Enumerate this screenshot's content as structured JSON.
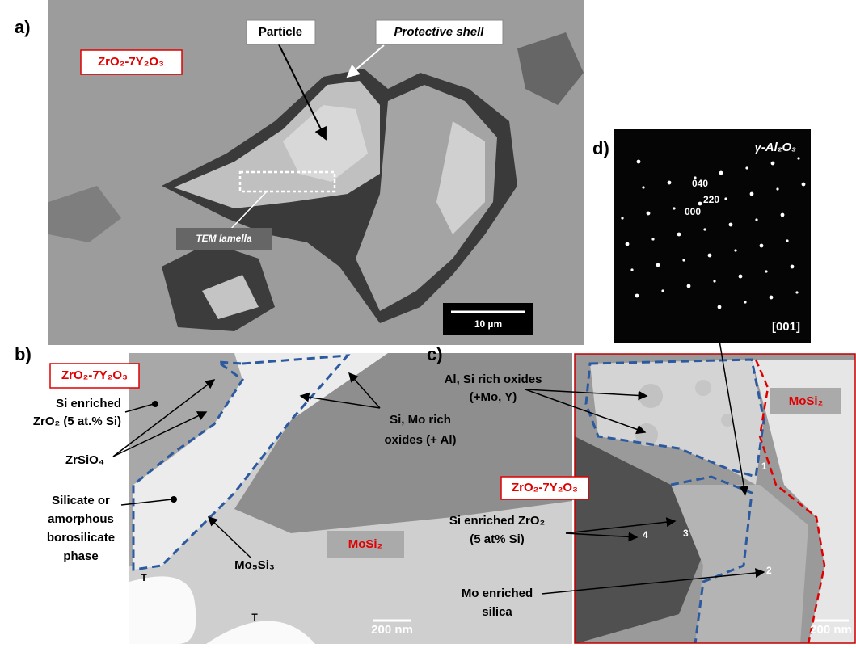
{
  "panel_a": {
    "label": "a)",
    "matrix": "ZrO₂-7Y₂O₃",
    "particle": "Particle",
    "shell": "Protective shell",
    "lamella": "TEM lamella",
    "scale": "10 µm"
  },
  "panel_b": {
    "label": "b)",
    "matrix": "ZrO₂-7Y₂O₃",
    "si_zro2": [
      "Si enriched",
      "ZrO₂ (5 at.% Si)"
    ],
    "zrsio4": "ZrSiO₄",
    "silicate": [
      "Silicate or",
      "amorphous",
      "borosilicate",
      "phase"
    ],
    "oxides": [
      "Si, Mo rich",
      "oxides (+ Al)"
    ],
    "mo5si3": "Mo₅Si₃",
    "mosi2": "MoSi₂",
    "t1": "T",
    "t2": "T",
    "scale": "200 nm"
  },
  "panel_c": {
    "label": "c)",
    "oxides": [
      "Al, Si rich oxides",
      "(+Mo, Y)"
    ],
    "mosi2": "MoSi₂",
    "matrix": "ZrO₂-7Y₂O₃",
    "si_zro2": [
      "Si enriched ZrO₂",
      "(5 at% Si)"
    ],
    "silica": [
      "Mo enriched",
      "silica"
    ],
    "points": [
      "1",
      "2",
      "3",
      "4"
    ],
    "scale": "200 nm"
  },
  "panel_d": {
    "label": "d)",
    "phase": "γ-Al₂O₃",
    "spots": [
      "040",
      "2̄20",
      "000"
    ],
    "zone": "[001]"
  }
}
